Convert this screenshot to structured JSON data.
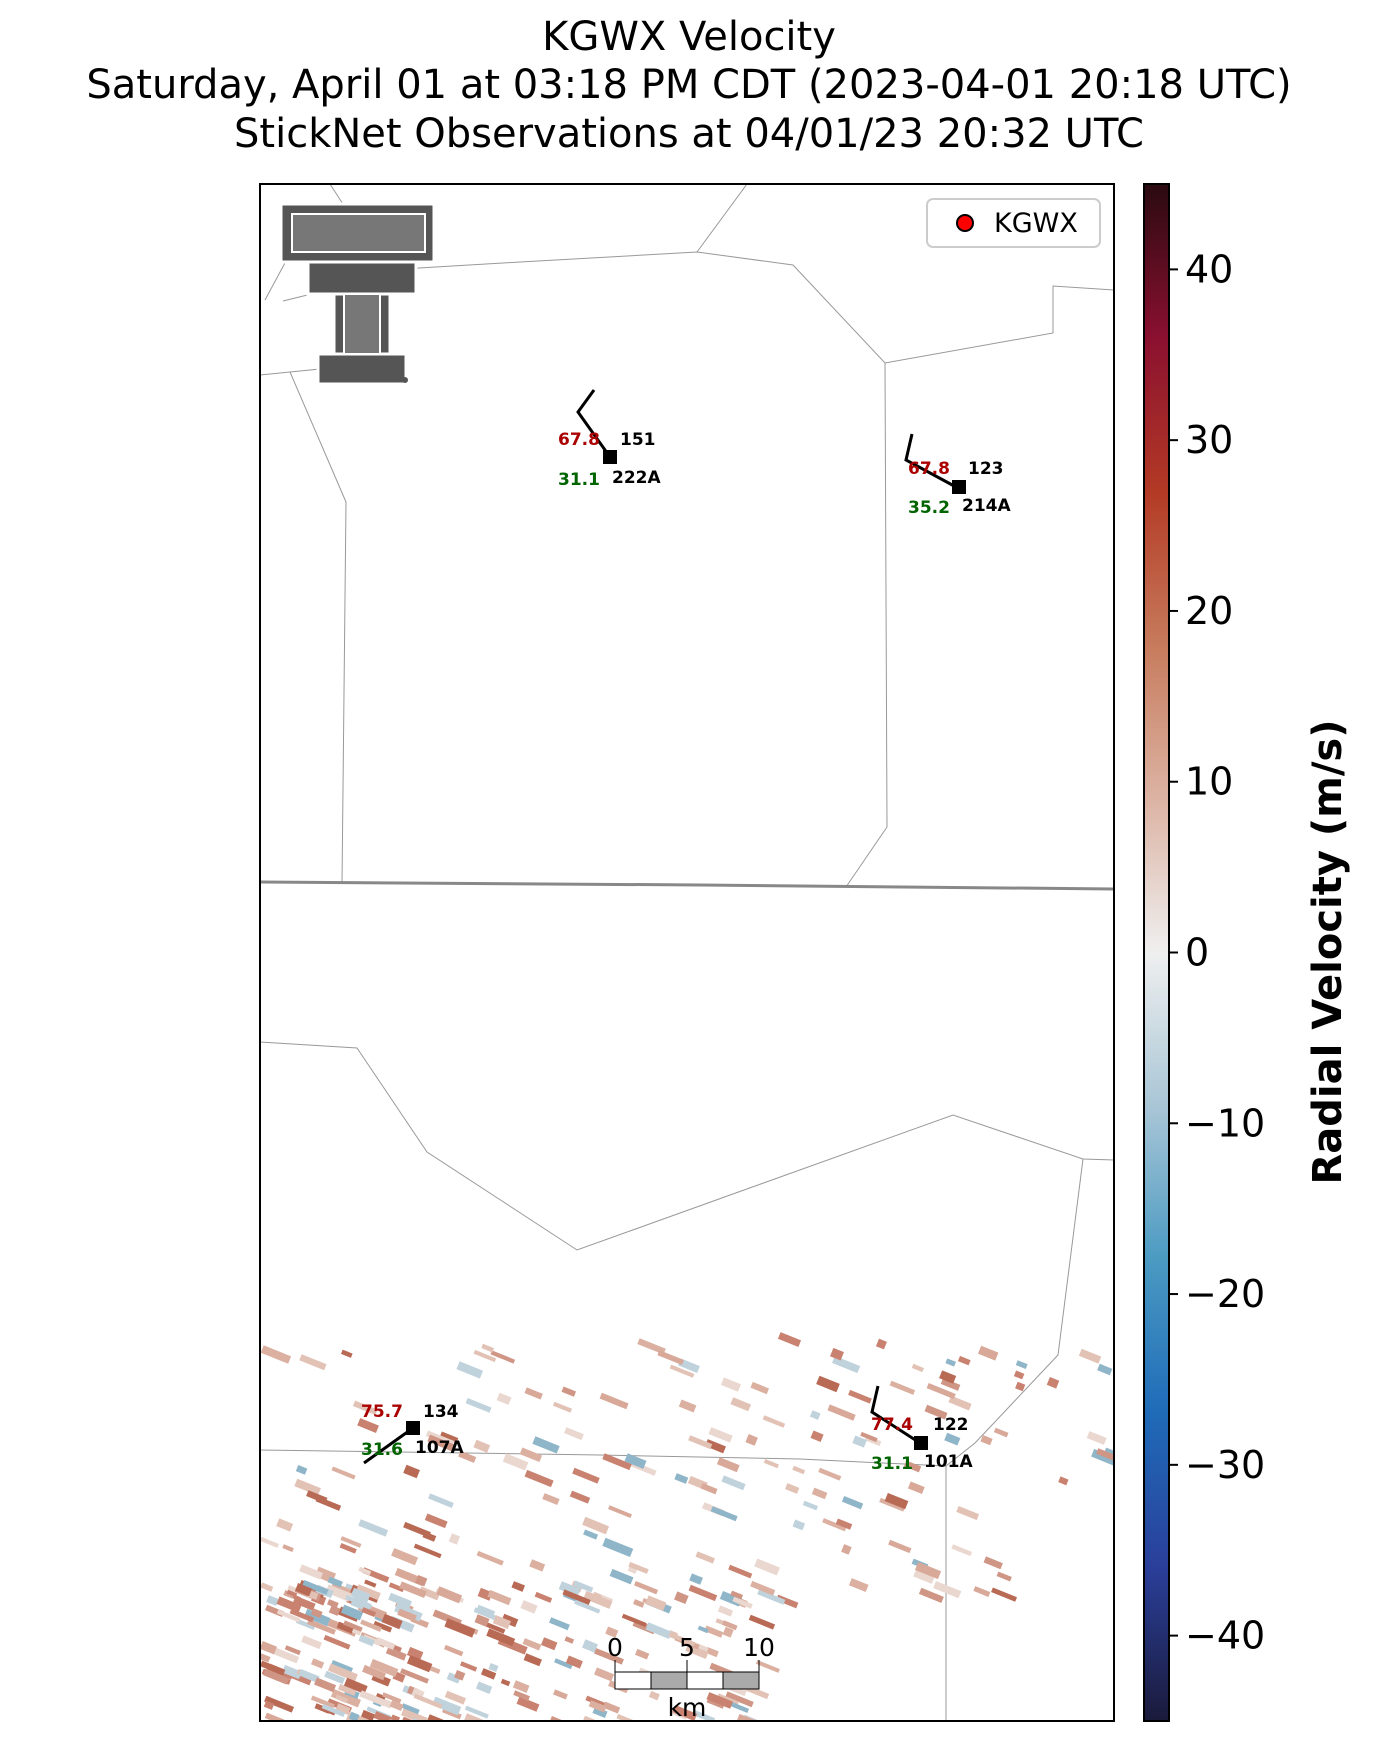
{
  "title": {
    "line1": "KGWX Velocity",
    "line2": "Saturday, April 01 at 03:18 PM CDT (2023-04-01 20:18 UTC)",
    "line3": "StickNet Observations at 04/01/23 20:32 UTC"
  },
  "legend": {
    "label": "KGWX",
    "marker_color": "#ff0000"
  },
  "logo": {
    "icon": "texas-tech-double-t-logo",
    "color": "#555555"
  },
  "stations": [
    {
      "id": "222A",
      "temp": "67.8",
      "dew": "31.1",
      "pressure": "151"
    },
    {
      "id": "214A",
      "temp": "67.8",
      "dew": "35.2",
      "pressure": "123"
    },
    {
      "id": "107A",
      "temp": "75.7",
      "dew": "31.6",
      "pressure": "134"
    },
    {
      "id": "101A",
      "temp": "77.4",
      "dew": "31.1",
      "pressure": "122"
    }
  ],
  "scale_bar": {
    "ticks": [
      "0",
      "5",
      "10"
    ],
    "unit": "km"
  },
  "colorbar": {
    "label": "Radial Velocity (m/s)",
    "range": [
      -45,
      45
    ],
    "ticks": [
      "40",
      "30",
      "20",
      "10",
      "0",
      "−10",
      "−20",
      "−30",
      "−40"
    ],
    "colors": [
      "#1a1a3a",
      "#2a3f9a",
      "#1f6bb8",
      "#4a9ac2",
      "#a9c6d6",
      "#efefef",
      "#dcb3a3",
      "#c77b5c",
      "#b33a25",
      "#8a1030",
      "#2a0a10"
    ]
  }
}
